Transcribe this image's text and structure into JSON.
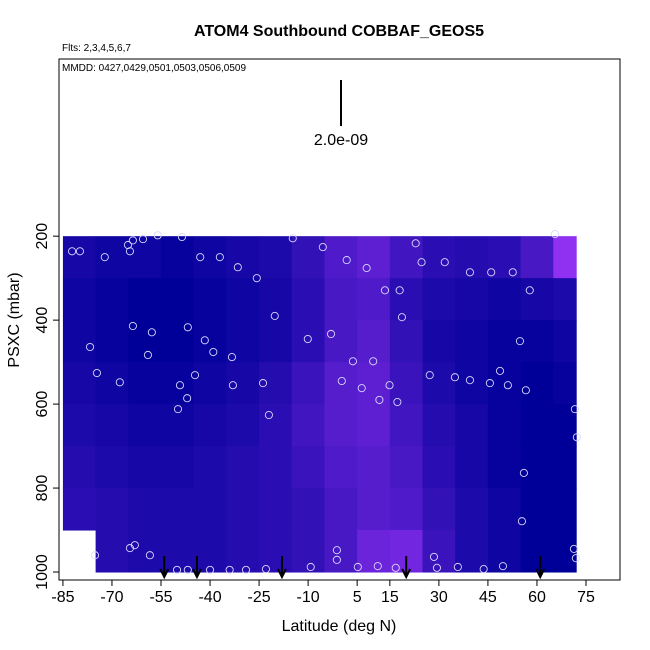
{
  "chart_data": {
    "type": "curtain",
    "title": "ATOM4 Southbound COBBAF_GEOS5",
    "flights_label": "Flts: 2,3,4,5,6,7",
    "dates_label": "MMDD: 0427,0429,0501,0503,0506,0509",
    "scale_label": "2.0e-09",
    "x_label": "Latitude (deg N)",
    "y_label": "PSXC (mbar)",
    "xlim": [
      -86.2,
      85.4
    ],
    "ylim": [
      1019,
      -222
    ],
    "xticks": [
      -85,
      -70,
      -55,
      -40,
      -25,
      -10,
      5,
      15,
      30,
      45,
      60,
      75
    ],
    "yticks": [
      200,
      400,
      600,
      800,
      1000
    ],
    "lat_edges": [
      -85,
      -75,
      -65,
      -55,
      -45,
      -35,
      -25,
      -15,
      -5,
      5,
      15,
      25,
      35,
      45,
      55,
      65,
      72
    ],
    "pressure_edges": [
      200,
      300,
      400,
      500,
      600,
      700,
      800,
      900,
      1000
    ],
    "zlim": [
      1.2e-09,
      2.2e-09
    ],
    "colorscale": [
      "#000099",
      "#9030f0"
    ],
    "z": [
      [
        1.35e-09,
        1.3e-09,
        1.3e-09,
        1.25e-09,
        1.3e-09,
        1.35e-09,
        1.4e-09,
        1.55e-09,
        1.75e-09,
        1.85e-09,
        1.65e-09,
        1.5e-09,
        1.45e-09,
        1.5e-09,
        1.7e-09,
        2.2e-09
      ],
      [
        1.3e-09,
        1.25e-09,
        1.2e-09,
        1.2e-09,
        1.25e-09,
        1.3e-09,
        1.35e-09,
        1.5e-09,
        1.7e-09,
        1.75e-09,
        1.5e-09,
        1.4e-09,
        1.35e-09,
        1.3e-09,
        1.35e-09,
        1.4e-09
      ],
      [
        1.3e-09,
        1.25e-09,
        1.2e-09,
        1.2e-09,
        1.25e-09,
        1.3e-09,
        1.35e-09,
        1.5e-09,
        1.7e-09,
        1.8e-09,
        1.55e-09,
        1.35e-09,
        1.3e-09,
        1.25e-09,
        1.25e-09,
        1.3e-09
      ],
      [
        1.35e-09,
        1.3e-09,
        1.25e-09,
        1.25e-09,
        1.3e-09,
        1.35e-09,
        1.45e-09,
        1.6e-09,
        1.8e-09,
        1.85e-09,
        1.6e-09,
        1.4e-09,
        1.3e-09,
        1.25e-09,
        1.2e-09,
        1.25e-09
      ],
      [
        1.4e-09,
        1.35e-09,
        1.3e-09,
        1.3e-09,
        1.35e-09,
        1.4e-09,
        1.5e-09,
        1.65e-09,
        1.8e-09,
        1.85e-09,
        1.65e-09,
        1.45e-09,
        1.35e-09,
        1.25e-09,
        1.2e-09,
        1.2e-09
      ],
      [
        1.45e-09,
        1.4e-09,
        1.35e-09,
        1.35e-09,
        1.4e-09,
        1.45e-09,
        1.5e-09,
        1.6e-09,
        1.75e-09,
        1.8e-09,
        1.7e-09,
        1.5e-09,
        1.35e-09,
        1.25e-09,
        1.2e-09,
        1.2e-09
      ],
      [
        1.5e-09,
        1.45e-09,
        1.4e-09,
        1.4e-09,
        1.4e-09,
        1.45e-09,
        1.5e-09,
        1.55e-09,
        1.7e-09,
        1.8e-09,
        1.75e-09,
        1.55e-09,
        1.4e-09,
        1.3e-09,
        1.2e-09,
        1.2e-09
      ],
      [
        null,
        1.45e-09,
        1.4e-09,
        1.4e-09,
        1.4e-09,
        1.45e-09,
        1.5e-09,
        1.55e-09,
        1.7e-09,
        1.95e-09,
        2e-09,
        1.6e-09,
        1.4e-09,
        1.3e-09,
        1.2e-09,
        1.2e-09
      ]
    ],
    "obs_lat": [
      -82.2,
      -79.8,
      -72.2,
      -65.1,
      -64.5,
      -63.6,
      -60.5,
      -56,
      -48.6,
      -43,
      -37,
      -31.5,
      -25.7,
      -14.7,
      -5.5,
      1.8,
      7.9,
      13.5,
      18,
      22.9,
      24.7,
      31.8,
      39.5,
      46,
      52.6,
      57.8,
      65.5,
      18.7,
      -63.6,
      -57.8,
      -46.8,
      -41.6,
      -39,
      -33.3,
      -20.2,
      -10.1,
      -3,
      3.7,
      9.9,
      -76.7,
      -74.6,
      -67.6,
      -59,
      -49.2,
      -44.6,
      -33,
      -23.8,
      -22,
      0.3,
      6.4,
      14.9,
      11.8,
      17.3,
      27.2,
      34.9,
      39.5,
      45.6,
      48.7,
      51.1,
      54.8,
      56.6,
      56,
      55.4,
      71.6,
      72.2,
      -49.8,
      -47,
      -75.2,
      -64.5,
      -63,
      -58.4,
      -50.1,
      -46.8,
      -40,
      -34,
      -29,
      -22.9,
      -9.2,
      -1.2,
      -1.2,
      5.2,
      11.3,
      16.8,
      28.5,
      29.4,
      35.8,
      43.7,
      49.6,
      71.3,
      71.9
    ],
    "obs_pressure": [
      236,
      236,
      250,
      221,
      236,
      210,
      207,
      198,
      202,
      250,
      250,
      274,
      300,
      205,
      226,
      257,
      276,
      329,
      329,
      217,
      262,
      262,
      286,
      286,
      286,
      329,
      195,
      393,
      414,
      429,
      417,
      448,
      476,
      488,
      390,
      445,
      433,
      498,
      498,
      464,
      526,
      548,
      483,
      555,
      531,
      555,
      550,
      626,
      545,
      562,
      555,
      590,
      595,
      531,
      536,
      543,
      550,
      521,
      555,
      450,
      567,
      764,
      879,
      612,
      679,
      612,
      586,
      960,
      943,
      936,
      960,
      995,
      995,
      995,
      995,
      995,
      993,
      988,
      948,
      971,
      988,
      986,
      990,
      964,
      990,
      988,
      993,
      986,
      945,
      967
    ],
    "arrows_lat": [
      -54,
      -44,
      -18,
      20,
      61
    ]
  }
}
